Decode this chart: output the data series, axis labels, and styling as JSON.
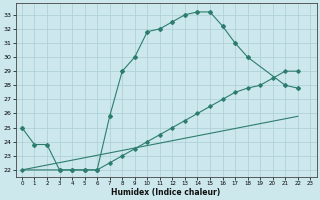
{
  "line1_x": [
    0,
    1,
    2,
    3,
    4,
    5,
    6,
    7,
    8,
    9,
    10,
    11,
    12,
    13,
    14,
    15,
    16,
    17,
    18,
    21,
    22
  ],
  "line1_y": [
    25.0,
    23.8,
    23.8,
    22.0,
    22.0,
    22.0,
    22.0,
    25.8,
    29.0,
    30.0,
    31.8,
    32.0,
    32.5,
    33.0,
    33.2,
    33.2,
    32.2,
    31.0,
    30.0,
    28.0,
    27.8
  ],
  "line2_x": [
    0,
    3,
    4,
    5,
    6,
    7,
    8,
    9,
    10,
    11,
    12,
    13,
    14,
    15,
    16,
    17,
    18,
    19,
    20,
    21,
    22
  ],
  "line2_y": [
    22.0,
    22.0,
    22.0,
    22.0,
    22.0,
    22.5,
    23.0,
    23.5,
    24.0,
    24.5,
    25.0,
    25.5,
    26.0,
    26.5,
    27.0,
    27.5,
    27.8,
    28.0,
    28.5,
    29.0,
    29.0
  ],
  "line3_x": [
    0,
    22
  ],
  "line3_y": [
    22.0,
    25.8
  ],
  "markers1_x": [
    0,
    1,
    2,
    3,
    4,
    5,
    6,
    7,
    8,
    9,
    10,
    11,
    12,
    13,
    14,
    15,
    16,
    17,
    18,
    21,
    22
  ],
  "markers1_y": [
    25.0,
    23.8,
    23.8,
    22.0,
    22.0,
    22.0,
    22.0,
    25.8,
    29.0,
    30.0,
    31.8,
    32.0,
    32.5,
    33.0,
    33.2,
    33.2,
    32.2,
    31.0,
    30.0,
    28.0,
    27.8
  ],
  "color": "#2d7d6e",
  "bg_color": "#cce8ec",
  "grid_color": "#aacdd4",
  "xlabel": "Humidex (Indice chaleur)",
  "xlim": [
    -0.5,
    23.5
  ],
  "ylim": [
    21.5,
    33.8
  ],
  "yticks": [
    22,
    23,
    24,
    25,
    26,
    27,
    28,
    29,
    30,
    31,
    32,
    33
  ],
  "xticks": [
    0,
    1,
    2,
    3,
    4,
    5,
    6,
    7,
    8,
    9,
    10,
    11,
    12,
    13,
    14,
    15,
    16,
    17,
    18,
    19,
    20,
    21,
    22,
    23
  ]
}
